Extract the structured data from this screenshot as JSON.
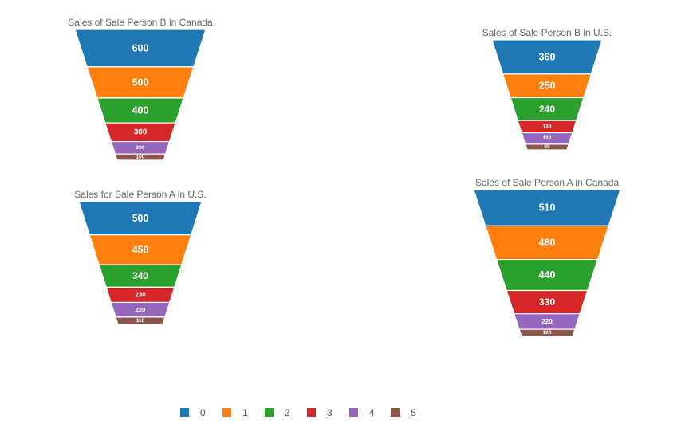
{
  "colors": [
    "#1f77b4",
    "#ff7f0e",
    "#2ca02c",
    "#d62728",
    "#9467bd",
    "#8c564b"
  ],
  "legend": {
    "items": [
      "0",
      "1",
      "2",
      "3",
      "4",
      "5"
    ]
  },
  "chart_data": [
    {
      "type": "funnel",
      "title": "Sales of Sale Person B in Canada",
      "categories": [
        "0",
        "1",
        "2",
        "3",
        "4",
        "5"
      ],
      "values": [
        600,
        500,
        400,
        300,
        200,
        100
      ]
    },
    {
      "type": "funnel",
      "title": "Sales of Sale Person B in U.S.",
      "categories": [
        "0",
        "1",
        "2",
        "3",
        "4",
        "5"
      ],
      "values": [
        360,
        250,
        240,
        130,
        120,
        60
      ]
    },
    {
      "type": "funnel",
      "title": "Sales for Sale Person A in U.S.",
      "categories": [
        "0",
        "1",
        "2",
        "3",
        "4",
        "5"
      ],
      "values": [
        500,
        450,
        340,
        230,
        220,
        110
      ]
    },
    {
      "type": "funnel",
      "title": "Sales of Sale Person A in Canada",
      "categories": [
        "0",
        "1",
        "2",
        "3",
        "4",
        "5"
      ],
      "values": [
        510,
        480,
        440,
        330,
        220,
        100
      ]
    }
  ]
}
